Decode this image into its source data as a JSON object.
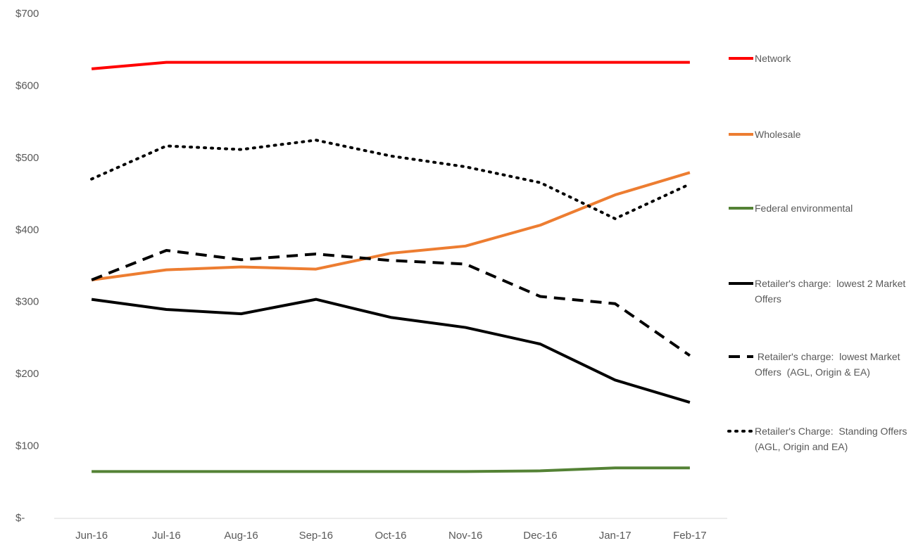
{
  "chart_data": {
    "type": "line",
    "categories": [
      "Jun-16",
      "Jul-16",
      "Aug-16",
      "Sep-16",
      "Oct-16",
      "Nov-16",
      "Dec-16",
      "Jan-17",
      "Feb-17"
    ],
    "ylim": [
      0,
      700
    ],
    "yticks": [
      {
        "value": 0,
        "label": "$-"
      },
      {
        "value": 100,
        "label": "$100"
      },
      {
        "value": 200,
        "label": "$200"
      },
      {
        "value": 300,
        "label": "$300"
      },
      {
        "value": 400,
        "label": "$400"
      },
      {
        "value": 500,
        "label": "$500"
      },
      {
        "value": 600,
        "label": "$600"
      },
      {
        "value": 700,
        "label": "$700"
      }
    ],
    "grid": false,
    "legend": "right",
    "series": [
      {
        "name": "Network",
        "color": "#ff0000",
        "dash": "solid",
        "values": [
          624,
          633,
          633,
          633,
          633,
          633,
          633,
          633,
          633
        ]
      },
      {
        "name": "Wholesale",
        "color": "#ed7d31",
        "dash": "solid",
        "values": [
          331,
          345,
          349,
          346,
          368,
          378,
          407,
          449,
          480
        ]
      },
      {
        "name": "Federal environmental",
        "color": "#548235",
        "dash": "solid",
        "values": [
          65,
          65,
          65,
          65,
          65,
          65,
          66,
          70,
          70
        ]
      },
      {
        "name": "Retailer's charge:  lowest 2 Market Offers",
        "color": "#000000",
        "dash": "solid",
        "values": [
          304,
          290,
          284,
          304,
          279,
          265,
          242,
          192,
          161
        ]
      },
      {
        "name": " Retailer's charge:  lowest Market Offers  (AGL, Origin & EA)",
        "color": "#000000",
        "dash": "dashed",
        "values": [
          331,
          372,
          359,
          367,
          358,
          353,
          308,
          298,
          226
        ]
      },
      {
        "name": "Retailer's Charge:  Standing Offers (AGL, Origin and EA)",
        "color": "#000000",
        "dash": "dotted",
        "values": [
          471,
          517,
          512,
          525,
          503,
          488,
          466,
          416,
          464
        ]
      }
    ]
  }
}
